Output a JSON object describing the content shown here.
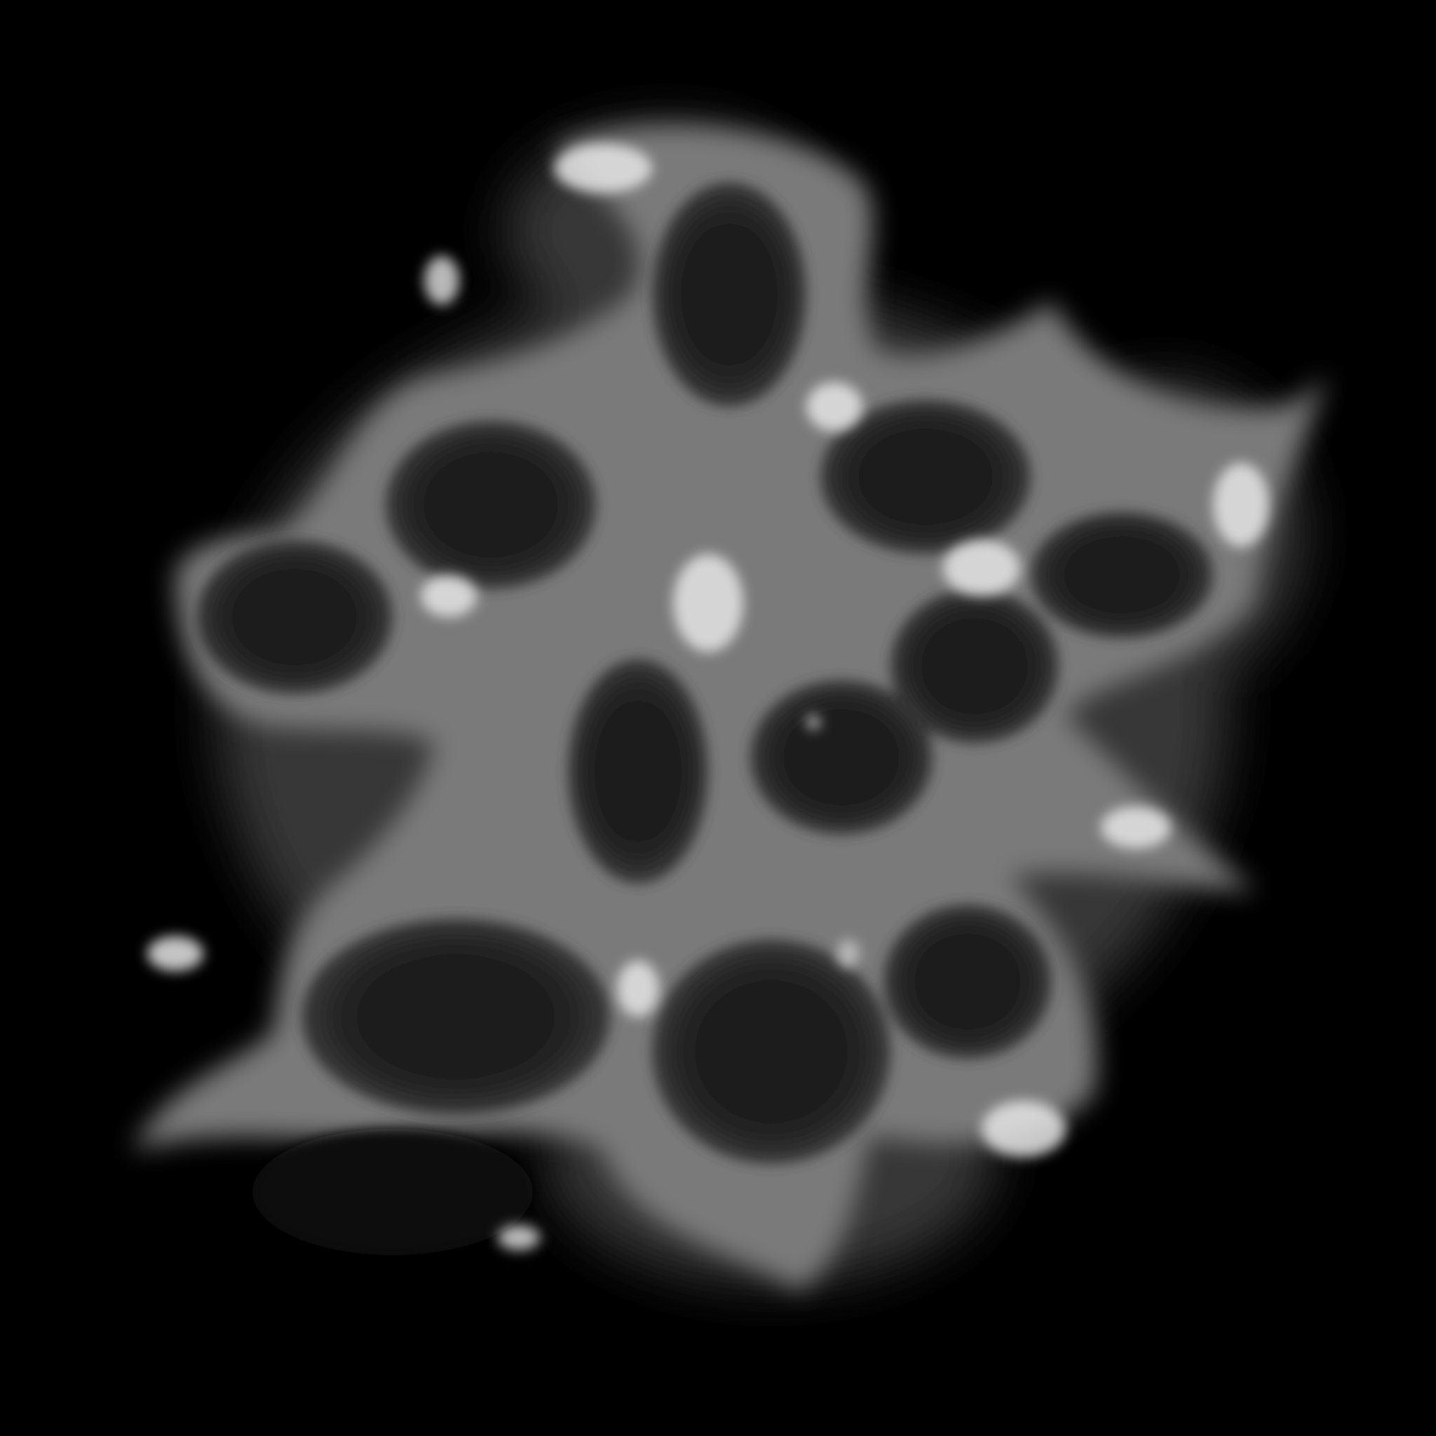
{
  "scene": {
    "subject": "cellular-foam-render",
    "background_color": "#000000",
    "foam_glow_color": "#e6e6e6",
    "foam_body_color": "#7a7a7a",
    "cell_interior_color": "#1c1c1c"
  }
}
